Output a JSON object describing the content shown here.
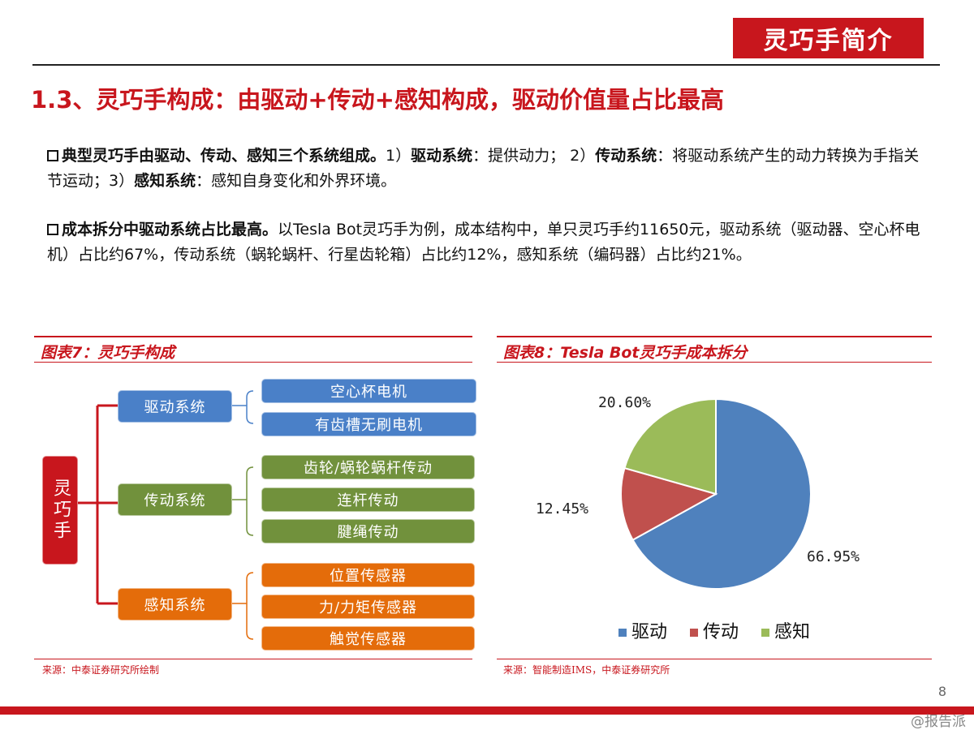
{
  "header": {
    "section_title": "灵巧手简介"
  },
  "slide_title": "1.3、灵巧手构成：由驱动+传动+感知构成，驱动价值量占比最高",
  "para1": {
    "lead": "典型灵巧手由驱动、传动、感知三个系统组成。",
    "t1": "1）",
    "k1": "驱动系统",
    "t2": "：提供动力； 2）",
    "k2": "传动系统",
    "t3": "：将驱动系统产生的动力转换为手指关节运动；3）",
    "k3": "感知系统",
    "t4": "：感知自身变化和外界环境。"
  },
  "para2": {
    "lead": "成本拆分中驱动系统占比最高。",
    "text": "以Tesla Bot灵巧手为例，成本结构中，单只灵巧手约11650元，驱动系统（驱动器、空心杯电机）占比约67%，传动系统（蜗轮蜗杆、行星齿轮箱）占比约12%，感知系统（编码器）占比约21%。"
  },
  "fig7": {
    "title": "图表7：灵巧手构成",
    "root": "灵巧手",
    "groups": [
      {
        "name": "驱动系统",
        "items": [
          "空心杯电机",
          "有齿槽无刷电机"
        ]
      },
      {
        "name": "传动系统",
        "items": [
          "齿轮/蜗轮蜗杆传动",
          "连杆传动",
          "腱绳传动"
        ]
      },
      {
        "name": "感知系统",
        "items": [
          "位置传感器",
          "力/力矩传感器",
          "触觉传感器"
        ]
      }
    ],
    "source": "来源：中泰证券研究所绘制"
  },
  "fig8": {
    "title": "图表8：Tesla Bot灵巧手成本拆分",
    "source": "来源：智能制造IMS，中泰证券研究所"
  },
  "chart_data": {
    "type": "pie",
    "title": "",
    "slices": [
      {
        "name": "驱动",
        "value": 66.95,
        "label": "66.95%",
        "color": "#4f81bd"
      },
      {
        "name": "传动",
        "value": 12.45,
        "label": "12.45%",
        "color": "#c0504d"
      },
      {
        "name": "感知",
        "value": 20.6,
        "label": "20.60%",
        "color": "#9bbb59"
      }
    ],
    "legend_position": "bottom"
  },
  "page_number": "8",
  "watermark": "@报告派"
}
